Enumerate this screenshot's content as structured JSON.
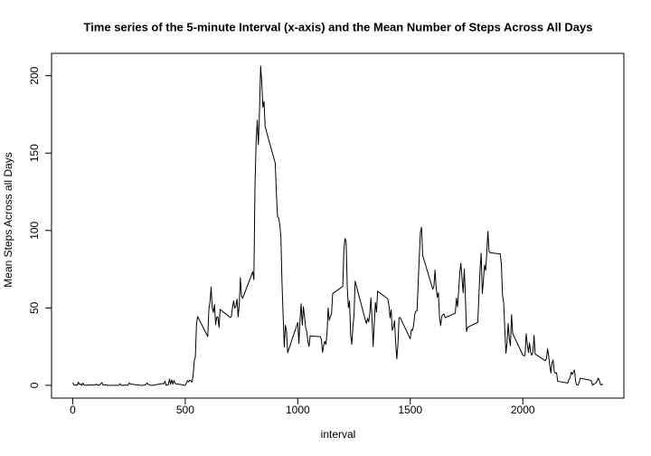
{
  "chart_data": {
    "type": "line",
    "title": "Time series of the 5-minute Interval (x-axis) and the Mean Number of Steps Across All Days",
    "x_label": "interval",
    "y_label": "Mean Steps Across all Days",
    "xlim": [
      -94.2,
      2449.2
    ],
    "ylim": [
      -8.25,
      214.42
    ],
    "xticks": [
      0,
      500,
      1000,
      1500,
      2000
    ],
    "yticks": [
      0,
      50,
      100,
      150,
      200
    ],
    "color": "#000000",
    "x": [
      0,
      5,
      10,
      15,
      20,
      25,
      30,
      35,
      40,
      45,
      50,
      55,
      100,
      105,
      110,
      115,
      120,
      125,
      130,
      135,
      140,
      145,
      150,
      155,
      200,
      205,
      210,
      215,
      220,
      225,
      230,
      235,
      240,
      245,
      250,
      255,
      300,
      305,
      310,
      315,
      320,
      325,
      330,
      335,
      340,
      345,
      350,
      355,
      400,
      405,
      410,
      415,
      420,
      425,
      430,
      435,
      440,
      445,
      450,
      455,
      500,
      505,
      510,
      515,
      520,
      525,
      530,
      535,
      540,
      545,
      550,
      555,
      600,
      605,
      610,
      615,
      620,
      625,
      630,
      635,
      640,
      645,
      650,
      655,
      700,
      705,
      710,
      715,
      720,
      725,
      730,
      735,
      740,
      745,
      750,
      755,
      800,
      805,
      810,
      815,
      820,
      825,
      830,
      835,
      840,
      845,
      850,
      855,
      900,
      905,
      910,
      915,
      920,
      925,
      930,
      935,
      940,
      945,
      950,
      955,
      1000,
      1005,
      1010,
      1015,
      1020,
      1025,
      1030,
      1035,
      1040,
      1045,
      1050,
      1055,
      1100,
      1105,
      1110,
      1115,
      1120,
      1125,
      1130,
      1135,
      1140,
      1145,
      1150,
      1155,
      1200,
      1205,
      1210,
      1215,
      1220,
      1225,
      1230,
      1235,
      1240,
      1245,
      1250,
      1255,
      1300,
      1305,
      1310,
      1315,
      1320,
      1325,
      1330,
      1335,
      1340,
      1345,
      1350,
      1355,
      1400,
      1405,
      1410,
      1415,
      1420,
      1425,
      1430,
      1435,
      1440,
      1445,
      1450,
      1455,
      1500,
      1505,
      1510,
      1515,
      1520,
      1525,
      1530,
      1535,
      1540,
      1545,
      1550,
      1555,
      1600,
      1605,
      1610,
      1615,
      1620,
      1625,
      1630,
      1635,
      1640,
      1645,
      1650,
      1655,
      1700,
      1705,
      1710,
      1715,
      1720,
      1725,
      1730,
      1735,
      1740,
      1745,
      1750,
      1755,
      1800,
      1805,
      1810,
      1815,
      1820,
      1825,
      1830,
      1835,
      1840,
      1845,
      1850,
      1855,
      1900,
      1905,
      1910,
      1915,
      1920,
      1925,
      1930,
      1935,
      1940,
      1945,
      1950,
      1955,
      2000,
      2005,
      2010,
      2015,
      2020,
      2025,
      2030,
      2035,
      2040,
      2045,
      2050,
      2055,
      2100,
      2105,
      2110,
      2115,
      2120,
      2125,
      2130,
      2135,
      2140,
      2145,
      2150,
      2155,
      2200,
      2205,
      2210,
      2215,
      2220,
      2225,
      2230,
      2235,
      2240,
      2245,
      2250,
      2255,
      2300,
      2305,
      2310,
      2315,
      2320,
      2325,
      2330,
      2335,
      2340,
      2345,
      2350,
      2355
    ],
    "values": [
      1.7,
      0.3,
      0.1,
      0.2,
      0.1,
      2.1,
      0.5,
      0.9,
      0,
      1.5,
      0.3,
      0.1,
      0.3,
      0.7,
      0.2,
      0.3,
      0,
      1.1,
      1.8,
      0.2,
      0.2,
      0.4,
      0.3,
      0,
      0,
      0,
      1.1,
      0,
      0,
      0.1,
      0,
      0.2,
      0,
      0,
      1.5,
      0.9,
      0,
      0,
      0,
      0,
      0.2,
      0.6,
      1.6,
      0.6,
      0.5,
      0.1,
      0,
      0,
      1.2,
      0.9,
      2.6,
      0,
      0.3,
      0.4,
      4.1,
      0.7,
      3.5,
      0.8,
      3.1,
      1.1,
      0,
      1.6,
      3,
      2.2,
      3.3,
      3,
      2.1,
      6.1,
      16,
      18.3,
      39.5,
      44.5,
      31.5,
      49.3,
      53.8,
      63.5,
      50,
      47.1,
      52.2,
      39.3,
      44,
      44.2,
      37.4,
      49,
      43.8,
      44.4,
      50.5,
      54.5,
      49.9,
      51,
      55.7,
      44.3,
      52.3,
      69.5,
      57.8,
      56.2,
      73.4,
      68.2,
      129.4,
      157.5,
      171.2,
      155.4,
      177.3,
      206.2,
      195.9,
      179.6,
      183.4,
      167,
      143.5,
      124,
      109.1,
      108.1,
      103.7,
      96,
      66.2,
      45.2,
      24.8,
      38.8,
      34.98,
      21.1,
      40.6,
      26.98,
      42.4,
      52.7,
      38.9,
      50.8,
      44.3,
      37.4,
      34.7,
      28.3,
      25.1,
      31.9,
      31.4,
      29.7,
      21.3,
      25.5,
      28.4,
      26.5,
      33.4,
      50,
      42,
      44.6,
      46,
      59.2,
      63.9,
      87.7,
      94.8,
      92.8,
      63.4,
      50.2,
      54.5,
      32.4,
      26.5,
      37.7,
      45.1,
      67.3,
      42.3,
      39.9,
      43.3,
      40.98,
      46.2,
      56.4,
      42.8,
      25.1,
      39.97,
      53.5,
      47.3,
      60.8,
      55.8,
      51.96,
      43.6,
      48.7,
      35.5,
      37.5,
      41.8,
      27.5,
      17.1,
      26.1,
      43.6,
      43.8,
      30,
      36.1,
      35.5,
      38.8,
      45.96,
      47.8,
      48.1,
      65.3,
      82.9,
      98.7,
      102.1,
      83.96,
      62.1,
      64.1,
      74.5,
      63.2,
      56.9,
      59.8,
      43.9,
      38.6,
      44.7,
      45.5,
      46.2,
      43.7,
      46.6,
      56.3,
      50.7,
      61.2,
      72.7,
      78.9,
      68.9,
      59.7,
      75.1,
      56.5,
      34.8,
      37.5,
      40.7,
      58,
      74.7,
      85.3,
      59.3,
      67.8,
      77.7,
      74.2,
      85.6,
      99.5,
      86.6,
      85.6,
      84.9,
      77.8,
      58,
      53.4,
      36.3,
      20.7,
      27.4,
      40,
      30.2,
      25.5,
      45.7,
      33.5,
      19.6,
      19,
      19.3,
      33.3,
      26.8,
      21.2,
      27.3,
      21.3,
      19.5,
      21.3,
      32.3,
      20.2,
      15.9,
      17.2,
      23.5,
      19.2,
      12.5,
      8,
      14.7,
      16.3,
      8.7,
      7.8,
      8.1,
      2.6,
      1.5,
      3.7,
      4.8,
      8.5,
      7.1,
      8.7,
      9.8,
      2.2,
      0.3,
      0.1,
      1.6,
      4.6,
      3.3,
      2.8,
      0,
      0.8,
      1,
      1.6,
      2.6,
      4.7,
      3.3,
      0.6,
      0.2,
      1.1
    ]
  }
}
